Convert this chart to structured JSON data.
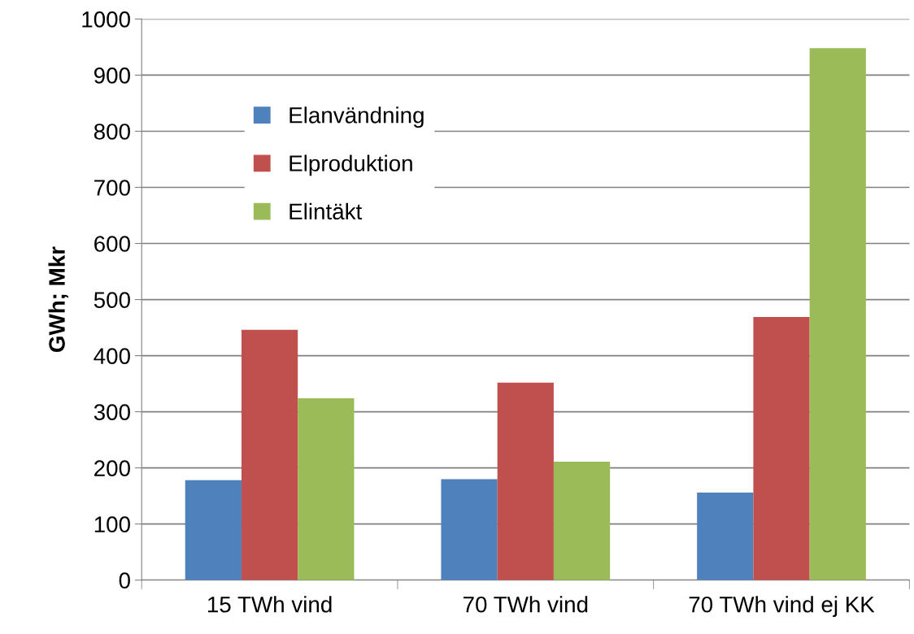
{
  "chart_data": {
    "type": "bar",
    "ylabel": "GWh; Mkr",
    "categories": [
      "15 TWh vind",
      "70 TWh vind",
      "70 TWh vind ej KK"
    ],
    "series": [
      {
        "name": "Elanvändning",
        "color": "#4f81bd",
        "values": [
          178,
          180,
          156
        ]
      },
      {
        "name": "Elproduktion",
        "color": "#c0504d",
        "values": [
          446,
          352,
          469
        ]
      },
      {
        "name": "Elintäkt",
        "color": "#9bbb59",
        "values": [
          324,
          211,
          948
        ]
      }
    ],
    "ylim": [
      0,
      1000
    ],
    "yticks": [
      0,
      100,
      200,
      300,
      400,
      500,
      600,
      700,
      800,
      900,
      1000
    ],
    "grid": "y",
    "legend": "top left"
  }
}
